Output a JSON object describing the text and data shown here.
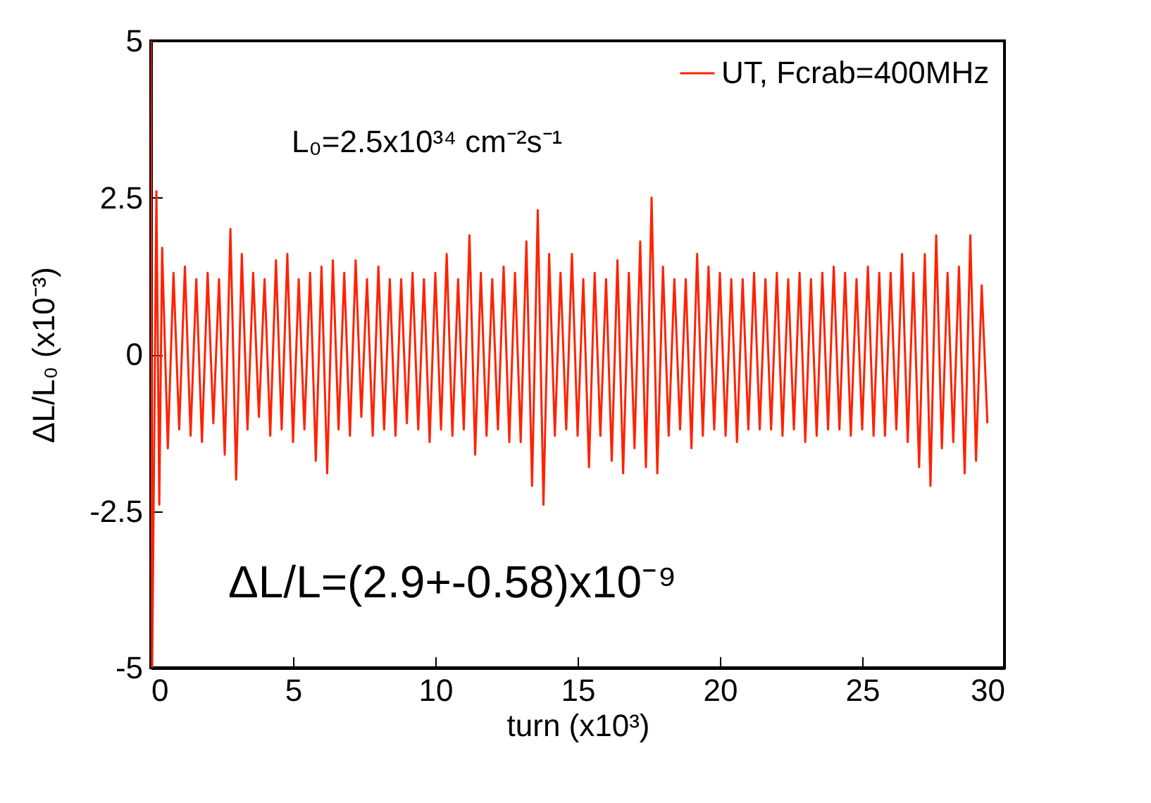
{
  "chart_data": {
    "type": "line",
    "xlabel": "turn (x10³)",
    "ylabel": "ΔL/L₀ (x10⁻³)",
    "xlim": [
      0,
      30
    ],
    "xticks": [
      0,
      5,
      10,
      15,
      20,
      25,
      30
    ],
    "ylim": [
      -5,
      5
    ],
    "yticks": [
      -5,
      -2.5,
      0,
      2.5,
      5
    ],
    "legend": "top right",
    "annotations": [
      "L₀=2.5x10³⁴ cm⁻²s⁻¹",
      "ΔL/L=(2.9+-0.58)x10⁻⁹"
    ],
    "x": [
      0,
      0.05,
      0.2,
      0.3,
      0.4,
      0.6,
      0.8,
      1.0,
      1.2,
      1.4,
      1.6,
      1.8,
      2.0,
      2.2,
      2.4,
      2.6,
      2.8,
      3.0,
      3.2,
      3.4,
      3.6,
      3.8,
      4.0,
      4.2,
      4.4,
      4.6,
      4.8,
      5.0,
      5.2,
      5.4,
      5.6,
      5.8,
      6.0,
      6.2,
      6.4,
      6.6,
      6.8,
      7.0,
      7.2,
      7.4,
      7.6,
      7.8,
      8.0,
      8.2,
      8.4,
      8.6,
      8.8,
      9.0,
      9.2,
      9.4,
      9.6,
      9.8,
      10.0,
      10.2,
      10.4,
      10.6,
      10.8,
      11.0,
      11.2,
      11.4,
      11.6,
      11.8,
      12.0,
      12.2,
      12.4,
      12.6,
      12.8,
      13.0,
      13.2,
      13.4,
      13.6,
      13.8,
      14.0,
      14.2,
      14.4,
      14.6,
      14.8,
      15.0,
      15.2,
      15.4,
      15.6,
      15.8,
      16.0,
      16.2,
      16.4,
      16.6,
      16.8,
      17.0,
      17.2,
      17.4,
      17.6,
      17.8,
      18.0,
      18.2,
      18.4,
      18.6,
      18.8,
      19.0,
      19.2,
      19.4,
      19.6,
      19.8,
      20.0,
      20.2,
      20.4,
      20.6,
      20.8,
      21.0,
      21.2,
      21.4,
      21.6,
      21.8,
      22.0,
      22.2,
      22.4,
      22.6,
      22.8,
      23.0,
      23.2,
      23.4,
      23.6,
      23.8,
      24.0,
      24.2,
      24.4,
      24.6,
      24.8,
      25.0,
      25.2,
      25.4,
      25.6,
      25.8,
      26.0,
      26.2,
      26.4,
      26.6,
      26.8,
      27.0,
      27.2,
      27.4,
      27.6,
      27.8,
      28.0,
      28.2,
      28.4,
      28.6,
      28.8,
      29.0,
      29.2,
      29.4
    ],
    "series": [
      {
        "name": "UT, Fcrab=400MHz",
        "color": "#ff2200",
        "values": [
          5,
          -5,
          2.6,
          -2.4,
          1.7,
          -1.5,
          1.3,
          -1.2,
          1.4,
          -1.3,
          1.2,
          -1.4,
          1.3,
          -1.1,
          1.2,
          -1.6,
          2.0,
          -2.0,
          1.6,
          -1.2,
          1.3,
          -1.0,
          1.2,
          -1.3,
          1.5,
          -1.2,
          1.6,
          -1.4,
          1.2,
          -1.2,
          1.3,
          -1.7,
          1.4,
          -1.9,
          1.5,
          -1.2,
          1.3,
          -1.3,
          1.5,
          -1.0,
          1.2,
          -1.3,
          1.4,
          -1.2,
          1.2,
          -1.3,
          1.2,
          -1.1,
          1.3,
          -1.2,
          1.2,
          -1.4,
          1.3,
          -1.2,
          1.6,
          -1.3,
          1.2,
          -1.2,
          1.9,
          -1.6,
          1.3,
          -1.3,
          1.2,
          -1.2,
          1.4,
          -1.4,
          1.3,
          -1.4,
          1.8,
          -2.1,
          2.3,
          -2.4,
          1.6,
          -1.3,
          1.3,
          -1.2,
          1.6,
          -1.3,
          1.2,
          -1.8,
          1.3,
          -1.3,
          1.2,
          -1.7,
          1.5,
          -1.9,
          1.3,
          -1.5,
          1.8,
          -1.8,
          2.5,
          -1.9,
          1.4,
          -1.3,
          1.2,
          -1.2,
          1.2,
          -1.5,
          1.6,
          -1.3,
          1.4,
          -1.2,
          1.3,
          -1.3,
          1.2,
          -1.4,
          1.2,
          -1.2,
          1.3,
          -1.2,
          1.2,
          -1.2,
          1.3,
          -1.3,
          1.2,
          -1.2,
          1.3,
          -1.4,
          1.2,
          -1.3,
          1.3,
          -1.2,
          1.4,
          -1.2,
          1.3,
          -1.3,
          1.2,
          -1.2,
          1.4,
          -1.3,
          1.3,
          -1.3,
          1.3,
          -1.2,
          1.6,
          -1.4,
          1.3,
          -1.8,
          1.6,
          -2.1,
          1.9,
          -1.5,
          1.3,
          -1.4,
          1.4,
          -1.9,
          1.9,
          -1.7,
          1.1,
          -1.1
        ]
      }
    ]
  }
}
